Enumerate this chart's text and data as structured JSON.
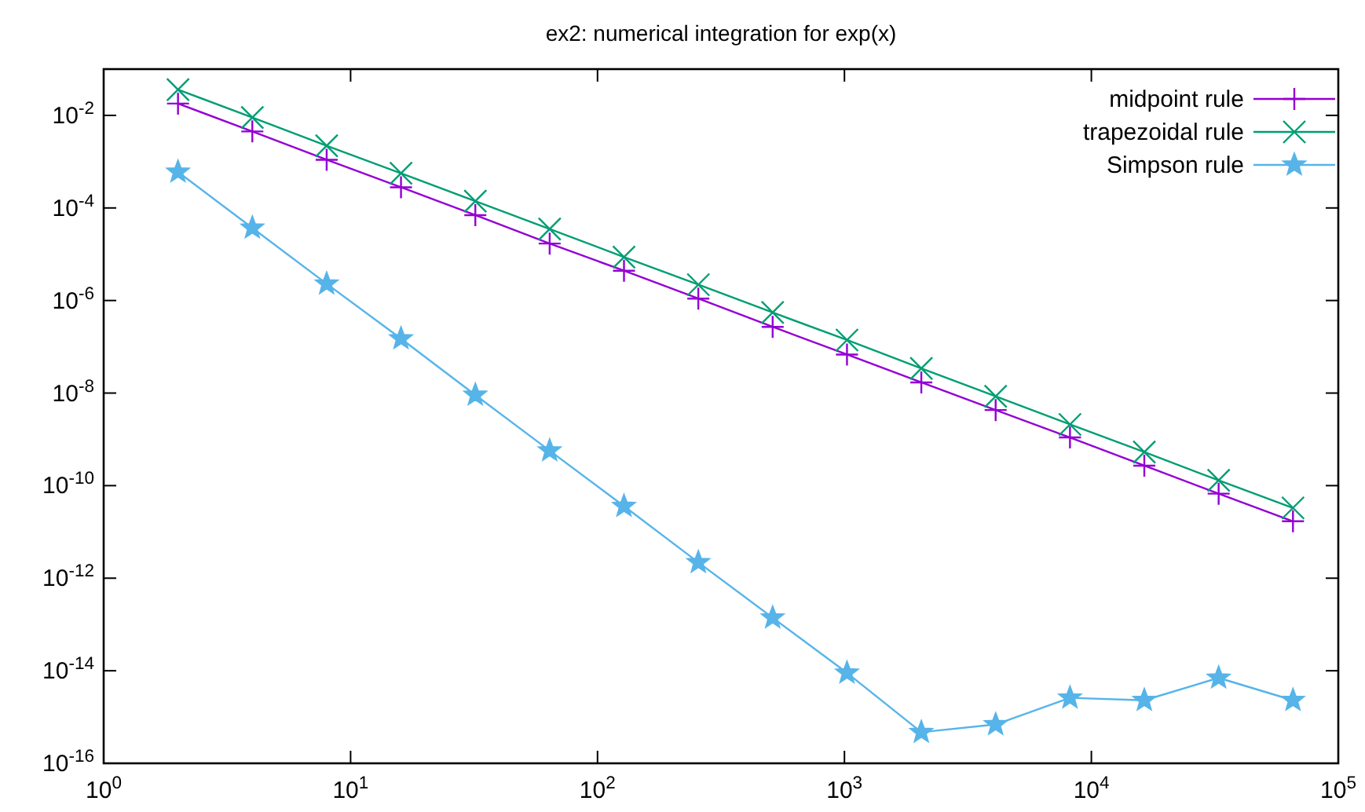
{
  "chart_data": {
    "type": "line",
    "title": "ex2: numerical integration for exp(x)",
    "x": [
      2,
      4,
      8,
      16,
      32,
      64,
      128,
      256,
      512,
      1024,
      2048,
      4096,
      8192,
      16384,
      32768,
      65536
    ],
    "series": [
      {
        "name": "midpoint rule",
        "color": "#9400d3",
        "marker": "plus",
        "values": [
          0.018,
          0.0045,
          0.0011,
          0.00028,
          7e-05,
          1.7e-05,
          4.4e-06,
          1.1e-06,
          2.7e-07,
          6.8e-08,
          1.7e-08,
          4.3e-09,
          1.1e-09,
          2.7e-10,
          6.7e-11,
          1.7e-11
        ]
      },
      {
        "name": "trapezoidal rule",
        "color": "#009e73",
        "marker": "cross",
        "values": [
          0.036,
          0.009,
          0.0022,
          0.00056,
          0.00014,
          3.5e-05,
          8.7e-06,
          2.2e-06,
          5.5e-07,
          1.4e-07,
          3.4e-08,
          8.5e-09,
          2.1e-09,
          5.3e-10,
          1.3e-10,
          3.3e-11
        ]
      },
      {
        "name": "Simpson rule",
        "color": "#56b4e9",
        "marker": "star",
        "values": [
          0.0006,
          3.7e-05,
          2.3e-06,
          1.5e-07,
          9.1e-09,
          5.7e-10,
          3.6e-11,
          2.2e-12,
          1.4e-13,
          9e-15,
          4.7e-16,
          6.9e-16,
          2.6e-15,
          2.3e-15,
          7e-15,
          2.3e-15
        ]
      }
    ],
    "log": "xy",
    "xlim": [
      1,
      100000
    ],
    "ylim": [
      1e-16,
      0.1
    ],
    "xticks": [
      {
        "value": 1,
        "label": "10$^{0}$"
      },
      {
        "value": 10,
        "label": "10$^{1}$"
      },
      {
        "value": 100,
        "label": "10$^{2}$"
      },
      {
        "value": 1000,
        "label": "10$^{3}$"
      },
      {
        "value": 10000,
        "label": "10$^{4}$"
      },
      {
        "value": 100000,
        "label": "10$^{5}$"
      }
    ],
    "yticks": [
      {
        "value": 1e-16,
        "label": "10$^{-16}$"
      },
      {
        "value": 1e-14,
        "label": "10$^{-14}$"
      },
      {
        "value": 1e-12,
        "label": "10$^{-12}$"
      },
      {
        "value": 1e-10,
        "label": "10$^{-10}$"
      },
      {
        "value": 1e-08,
        "label": "10$^{-8}$"
      },
      {
        "value": 1e-06,
        "label": "10$^{-6}$"
      },
      {
        "value": 0.0001,
        "label": "10$^{-4}$"
      },
      {
        "value": 0.01,
        "label": "10$^{-2}$"
      }
    ],
    "grid": false,
    "legend": "top right",
    "line_style": "solid"
  }
}
